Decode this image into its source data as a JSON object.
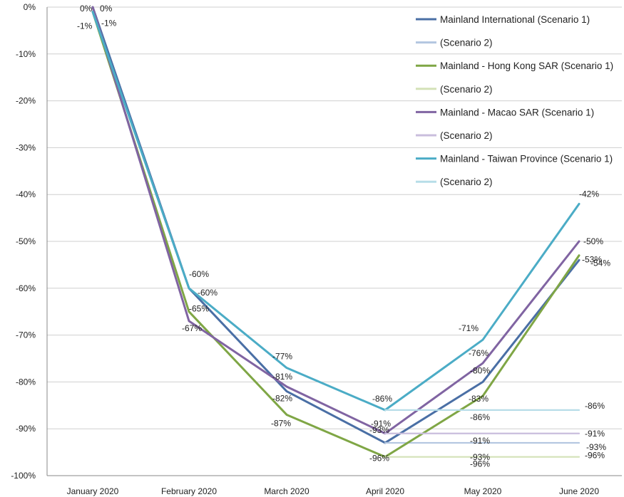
{
  "chart_data": {
    "type": "line",
    "categories": [
      "January 2020",
      "February 2020",
      "March 2020",
      "April 2020",
      "May 2020",
      "June 2020"
    ],
    "y_ticks": [
      "0%",
      "-10%",
      "-20%",
      "-30%",
      "-40%",
      "-50%",
      "-60%",
      "-70%",
      "-80%",
      "-90%",
      "-100%"
    ],
    "ylim": [
      -100,
      0
    ],
    "grid": true,
    "legend_position": "top-right",
    "series": [
      {
        "name": "Mainland International (Scenario 1)",
        "color": "#4A6FA5",
        "x": [
          0,
          1,
          2,
          3,
          4,
          5
        ],
        "values": [
          0,
          -60,
          -82,
          -93,
          -80,
          -54
        ],
        "labels": [
          "0%",
          "-60%",
          "-82%",
          "-93%",
          "-80%",
          "-54%"
        ]
      },
      {
        "name": "(Scenario 2)",
        "color": "#B3C6E0",
        "x": [
          3,
          4,
          5
        ],
        "values": [
          -93,
          -93,
          -93
        ],
        "labels": [
          "",
          "-93%",
          "-93%"
        ]
      },
      {
        "name": "Mainland - Hong Kong SAR (Scenario 1)",
        "color": "#7FA645",
        "x": [
          0,
          1,
          2,
          3,
          4,
          5
        ],
        "values": [
          -1,
          -65,
          -87,
          -96,
          -83,
          -53
        ],
        "labels": [
          "-1%",
          "-65%",
          "-87%",
          "-96%",
          "-83%",
          "-53%"
        ]
      },
      {
        "name": "(Scenario 2)",
        "color": "#D4E2B8",
        "x": [
          3,
          4,
          5
        ],
        "values": [
          -96,
          -96,
          -96
        ],
        "labels": [
          "",
          "-96%",
          "-96%"
        ]
      },
      {
        "name": "Mainland - Macao SAR (Scenario 1)",
        "color": "#8064A2",
        "x": [
          0,
          1,
          2,
          3,
          4,
          5
        ],
        "values": [
          0,
          -67,
          -81,
          -91,
          -76,
          -50
        ],
        "labels": [
          "0%",
          "-67%",
          "-81%",
          "-91%",
          "-76%",
          "-50%"
        ]
      },
      {
        "name": "(Scenario 2)",
        "color": "#C9BEDD",
        "x": [
          3,
          4,
          5
        ],
        "values": [
          -91,
          -91,
          -91
        ],
        "labels": [
          "",
          "-91%",
          "-91%"
        ]
      },
      {
        "name": "Mainland - Taiwan Province (Scenario 1)",
        "color": "#4BACC6",
        "x": [
          0,
          1,
          2,
          3,
          4,
          5
        ],
        "values": [
          -1,
          -60,
          -77,
          -86,
          -71,
          -42
        ],
        "labels": [
          "-1%",
          "-60%",
          "-77%",
          "-86%",
          "-71%",
          "-42%"
        ]
      },
      {
        "name": "(Scenario 2)",
        "color": "#B7DDE8",
        "x": [
          3,
          4,
          5
        ],
        "values": [
          -86,
          -86,
          -86
        ],
        "labels": [
          "",
          "-86%",
          "-86%"
        ]
      }
    ]
  }
}
